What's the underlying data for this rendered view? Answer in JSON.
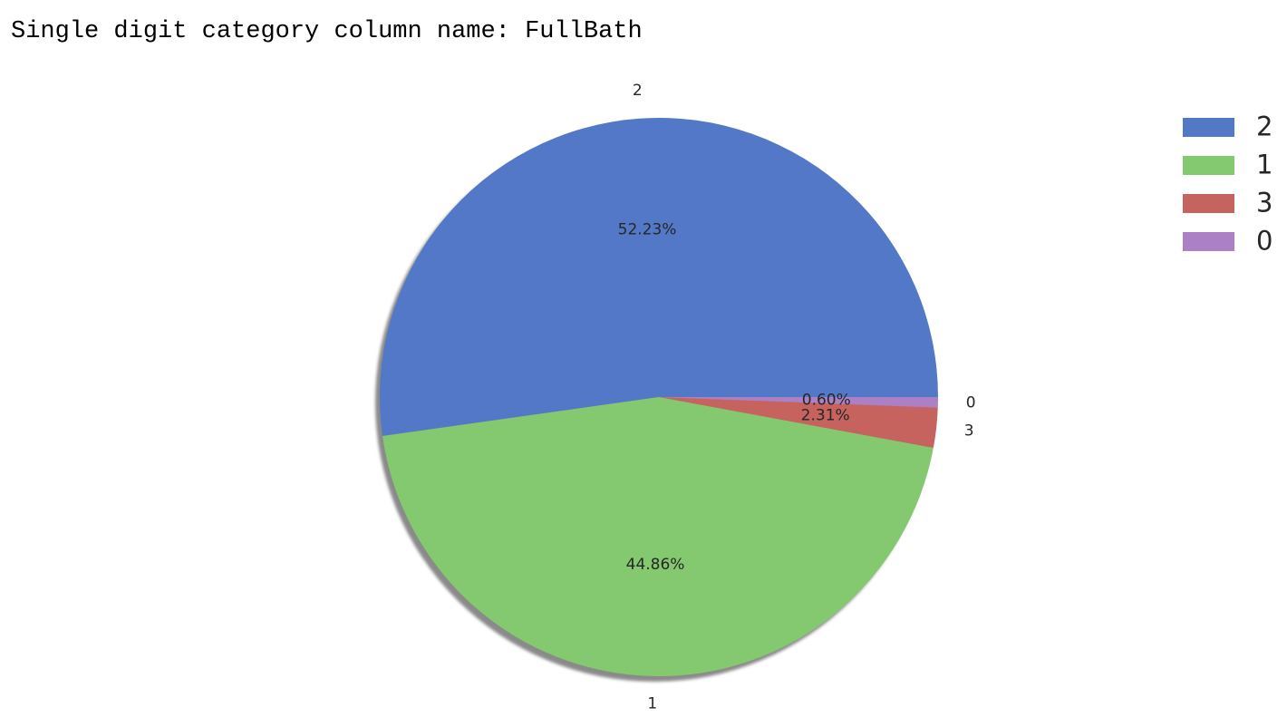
{
  "cell_output": {
    "text": "Single digit category column name: FullBath"
  },
  "chart_data": {
    "type": "pie",
    "title": "",
    "categories": [
      "2",
      "1",
      "3",
      "0"
    ],
    "values": [
      52.23,
      44.86,
      2.31,
      0.6
    ],
    "value_labels": [
      "52.23%",
      "44.86%",
      "2.31%",
      "0.60%"
    ],
    "colors": [
      "#5378c8",
      "#84c970",
      "#c7635f",
      "#ab80c4"
    ],
    "start_angle_deg": 0,
    "direction": "counterclockwise",
    "shadow": true,
    "legend": {
      "position": "top-right",
      "entries": [
        "2",
        "1",
        "3",
        "0"
      ]
    }
  }
}
